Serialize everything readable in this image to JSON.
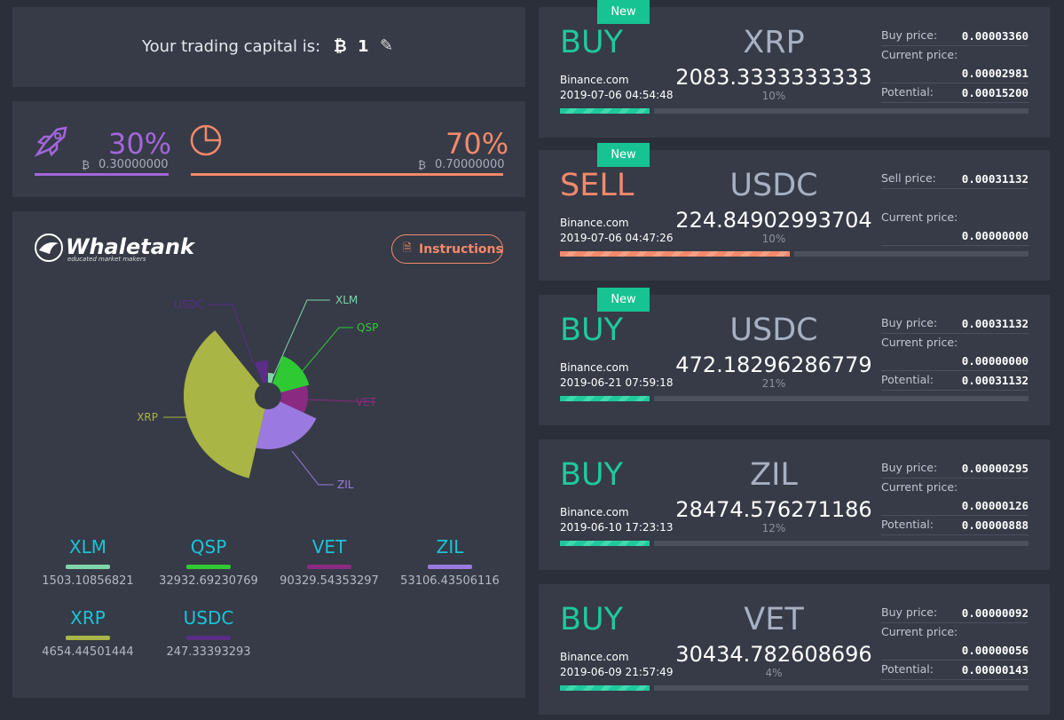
{
  "capital": {
    "label": "Your trading capital is:",
    "amount": "1"
  },
  "balance": {
    "left": {
      "percent": "30%",
      "amount": "0.30000000"
    },
    "right": {
      "percent": "70%",
      "amount": "0.70000000"
    }
  },
  "brand": {
    "name": "Whaletank",
    "tagline": "educated market makers",
    "button": "Instructions"
  },
  "holdings": [
    {
      "name": "XLM",
      "amount": "1503.10856821",
      "color": "#7fd4aa"
    },
    {
      "name": "QSP",
      "amount": "32932.69230769",
      "color": "#2fc934"
    },
    {
      "name": "VET",
      "amount": "90329.54353297",
      "color": "#8a2a80"
    },
    {
      "name": "ZIL",
      "amount": "53106.43506116",
      "color": "#9a7ae0"
    },
    {
      "name": "XRP",
      "amount": "4654.44501444",
      "color": "#a9b545"
    },
    {
      "name": "USDC",
      "amount": "247.33393293",
      "color": "#5a2d86"
    }
  ],
  "trades": [
    {
      "badge": "New",
      "side": "BUY",
      "coin": "XRP",
      "exchange": "Binance.com",
      "time": "2019-07-06 04:54:48",
      "amount": "2083.3333333333",
      "percent": "10%",
      "prices": [
        {
          "label": "Buy price:",
          "value": "0.00003360"
        },
        {
          "label": "Current price:",
          "value": "0.00002981"
        },
        {
          "label": "Potential:",
          "value": "0.00015200"
        }
      ]
    },
    {
      "badge": "New",
      "side": "SELL",
      "coin": "USDC",
      "exchange": "Binance.com",
      "time": "2019-07-06 04:47:26",
      "amount": "224.84902993704",
      "percent": "10%",
      "prices": [
        {
          "label": "Sell price:",
          "value": "0.00031132"
        },
        {
          "label": "Current price:",
          "value": "0.00000000"
        }
      ]
    },
    {
      "badge": "New",
      "side": "BUY",
      "coin": "USDC",
      "exchange": "Binance.com",
      "time": "2019-06-21 07:59:18",
      "amount": "472.18296286779",
      "percent": "21%",
      "prices": [
        {
          "label": "Buy price:",
          "value": "0.00031132"
        },
        {
          "label": "Current price:",
          "value": "0.00000000"
        },
        {
          "label": "Potential:",
          "value": "0.00031132"
        }
      ]
    },
    {
      "side": "BUY",
      "coin": "ZIL",
      "exchange": "Binance.com",
      "time": "2019-06-10 17:23:13",
      "amount": "28474.576271186",
      "percent": "12%",
      "prices": [
        {
          "label": "Buy price:",
          "value": "0.00000295"
        },
        {
          "label": "Current price:",
          "value": "0.00000126"
        },
        {
          "label": "Potential:",
          "value": "0.00000888"
        }
      ]
    },
    {
      "side": "BUY",
      "coin": "VET",
      "exchange": "Binance.com",
      "time": "2019-06-09 21:57:49",
      "amount": "30434.782608696",
      "percent": "4%",
      "prices": [
        {
          "label": "Buy price:",
          "value": "0.00000092"
        },
        {
          "label": "Current price:",
          "value": "0.00000056"
        },
        {
          "label": "Potential:",
          "value": "0.00000143"
        }
      ]
    }
  ]
}
